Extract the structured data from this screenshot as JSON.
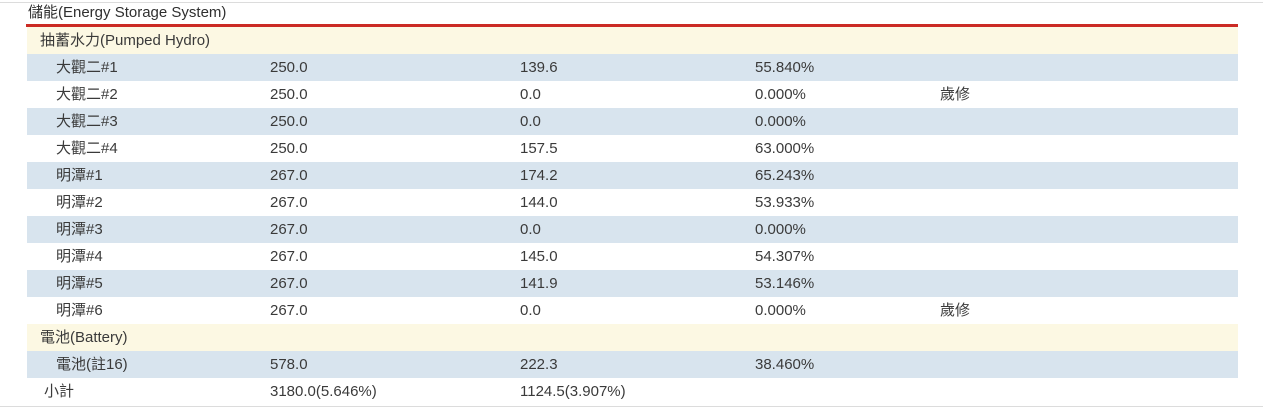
{
  "title": "儲能(Energy Storage System)",
  "colors": {
    "accent_red": "#cb2a24",
    "row_blue": "#d8e4ee",
    "section_yellow": "#fcf8e3",
    "hairline": "#dcdcdc",
    "text": "#3a3a3a"
  },
  "table": {
    "sections": [
      {
        "header": "抽蓄水力(Pumped Hydro)",
        "rows": [
          {
            "name": "大觀二#1",
            "capacity": "250.0",
            "output": "139.6",
            "percent": "55.840%",
            "note": ""
          },
          {
            "name": "大觀二#2",
            "capacity": "250.0",
            "output": "0.0",
            "percent": "0.000%",
            "note": "歲修"
          },
          {
            "name": "大觀二#3",
            "capacity": "250.0",
            "output": "0.0",
            "percent": "0.000%",
            "note": ""
          },
          {
            "name": "大觀二#4",
            "capacity": "250.0",
            "output": "157.5",
            "percent": "63.000%",
            "note": ""
          },
          {
            "name": "明潭#1",
            "capacity": "267.0",
            "output": "174.2",
            "percent": "65.243%",
            "note": ""
          },
          {
            "name": "明潭#2",
            "capacity": "267.0",
            "output": "144.0",
            "percent": "53.933%",
            "note": ""
          },
          {
            "name": "明潭#3",
            "capacity": "267.0",
            "output": "0.0",
            "percent": "0.000%",
            "note": ""
          },
          {
            "name": "明潭#4",
            "capacity": "267.0",
            "output": "145.0",
            "percent": "54.307%",
            "note": ""
          },
          {
            "name": "明潭#5",
            "capacity": "267.0",
            "output": "141.9",
            "percent": "53.146%",
            "note": ""
          },
          {
            "name": "明潭#6",
            "capacity": "267.0",
            "output": "0.0",
            "percent": "0.000%",
            "note": "歲修"
          }
        ]
      },
      {
        "header": "電池(Battery)",
        "rows": [
          {
            "name": "電池(註16)",
            "capacity": "578.0",
            "output": "222.3",
            "percent": "38.460%",
            "note": ""
          }
        ]
      }
    ],
    "subtotal": {
      "name": "小計",
      "capacity": "3180.0(5.646%)",
      "output": "1124.5(3.907%)",
      "percent": "",
      "note": ""
    }
  }
}
